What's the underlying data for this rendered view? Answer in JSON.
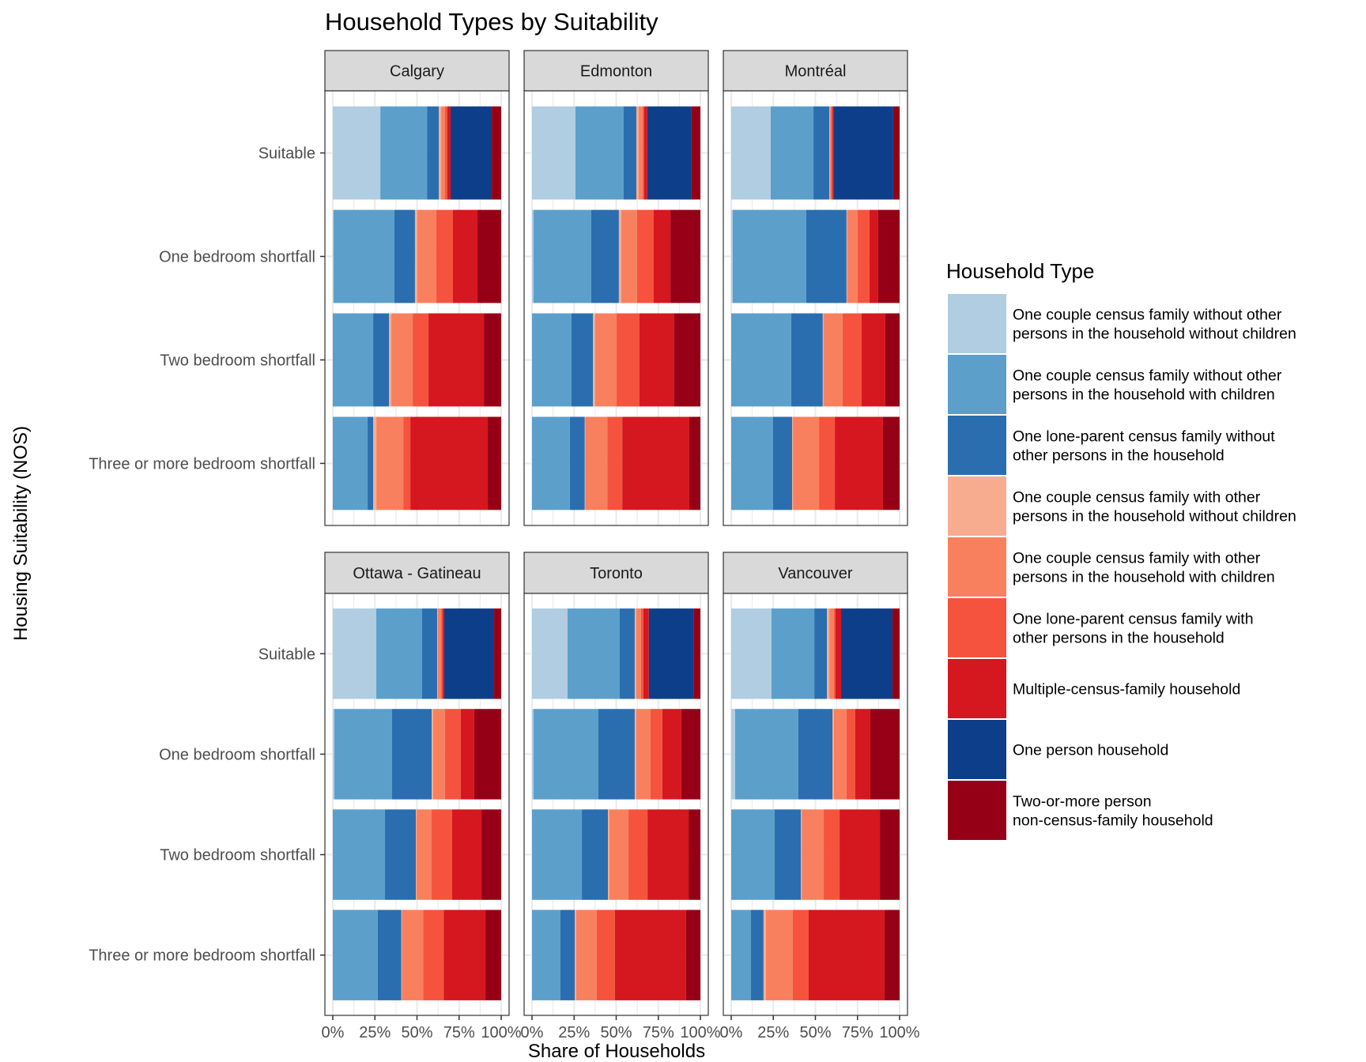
{
  "chart_data": {
    "type": "bar",
    "orientation": "horizontal",
    "stacked": "fill",
    "title": "Household Types by Suitability",
    "xlabel": "Share of Households",
    "ylabel": "Housing Suitability (NOS)",
    "xlim": [
      0,
      1
    ],
    "x_ticks": [
      "0%",
      "25%",
      "50%",
      "75%",
      "100%"
    ],
    "grid": true,
    "legend_title": "Household Type",
    "legend_position": "right",
    "categories": [
      "Suitable",
      "One bedroom shortfall",
      "Two bedroom shortfall",
      "Three or more bedroom shortfall"
    ],
    "household_types": [
      {
        "name": "One couple census family without other persons in the household without children",
        "lines": [
          "One couple census family without other",
          "persons in the household without children"
        ],
        "color": "#b0cde2"
      },
      {
        "name": "One couple census family without other persons in the household with children",
        "lines": [
          "One couple census family without other",
          "persons in the household with children"
        ],
        "color": "#5c9fcb"
      },
      {
        "name": "One lone-parent census family without other persons in the household",
        "lines": [
          "One lone-parent census family without",
          "other persons in the household"
        ],
        "color": "#2a6eb0"
      },
      {
        "name": "One couple census family with other persons in the household without children",
        "lines": [
          "One couple census family with other",
          "persons in the household without children"
        ],
        "color": "#f8ac8f"
      },
      {
        "name": "One couple census family with other persons in the household with children",
        "lines": [
          "One couple census family with other",
          "persons in the household with children"
        ],
        "color": "#f8805f"
      },
      {
        "name": "One lone-parent census family with other persons in the household",
        "lines": [
          "One lone-parent census family with",
          "other persons in the household"
        ],
        "color": "#f5533d"
      },
      {
        "name": "Multiple-census-family household",
        "lines": [
          "Multiple-census-family household"
        ],
        "color": "#d5171f"
      },
      {
        "name": "One person household",
        "lines": [
          "One person household"
        ],
        "color": "#0d3e8a"
      },
      {
        "name": "Two-or-more person non-census-family household",
        "lines": [
          "Two-or-more person",
          "non-census-family household"
        ],
        "color": "#960016"
      }
    ],
    "panels": [
      {
        "city": "Calgary",
        "values": {
          "Suitable": [
            28.2,
            27.7,
            7.0,
            1.4,
            2.3,
            1.4,
            1.9,
            24.4,
            5.6
          ],
          "One bedroom shortfall": [
            0.5,
            36.2,
            12.2,
            1.4,
            11.3,
            9.9,
            14.6,
            0.0,
            14.1
          ],
          "Two bedroom shortfall": [
            0.0,
            24.0,
            9.4,
            1.4,
            12.7,
            9.4,
            32.9,
            0.0,
            10.3
          ],
          "Three or more bedroom shortfall": [
            0.0,
            20.7,
            3.3,
            1.9,
            16.0,
            4.2,
            46.0,
            0.0,
            8.0
          ]
        }
      },
      {
        "city": "Edmonton",
        "values": {
          "Suitable": [
            25.8,
            28.6,
            7.5,
            1.4,
            2.3,
            0.9,
            1.9,
            26.3,
            5.2
          ],
          "One bedroom shortfall": [
            0.9,
            34.3,
            16.4,
            1.4,
            9.4,
            9.9,
            9.9,
            0.0,
            17.8
          ],
          "Two bedroom shortfall": [
            0.0,
            23.5,
            12.7,
            1.4,
            12.7,
            13.6,
            20.7,
            0.0,
            15.5
          ],
          "Three or more bedroom shortfall": [
            0.0,
            22.5,
            8.9,
            0.3,
            13.1,
            8.9,
            39.9,
            0.0,
            6.6
          ]
        }
      },
      {
        "city": "Montréal",
        "values": {
          "Suitable": [
            23.5,
            25.4,
            9.4,
            0.5,
            0.5,
            0.9,
            0.9,
            35.2,
            3.8
          ],
          "One bedroom shortfall": [
            0.9,
            43.7,
            23.9,
            0.5,
            6.1,
            7.0,
            5.2,
            0.0,
            12.7
          ],
          "Two bedroom shortfall": [
            0.0,
            35.7,
            18.8,
            0.5,
            11.3,
            11.3,
            14.1,
            0.0,
            8.5
          ],
          "Three or more bedroom shortfall": [
            0.0,
            24.9,
            11.3,
            0.5,
            15.5,
            9.4,
            28.6,
            0.0,
            9.9
          ]
        }
      },
      {
        "city": "Ottawa - Gatineau",
        "values": {
          "Suitable": [
            25.8,
            27.2,
            8.9,
            0.5,
            1.9,
            0.9,
            0.9,
            29.6,
            4.2
          ],
          "One bedroom shortfall": [
            0.9,
            34.3,
            23.5,
            0.9,
            7.0,
            9.4,
            8.0,
            0.0,
            16.0
          ],
          "Two bedroom shortfall": [
            0.0,
            31.0,
            18.3,
            0.5,
            8.9,
            12.2,
            17.4,
            0.0,
            11.7
          ],
          "Three or more bedroom shortfall": [
            0.0,
            26.8,
            14.1,
            0.3,
            12.7,
            12.2,
            24.9,
            0.0,
            9.4
          ]
        }
      },
      {
        "city": "Toronto",
        "values": {
          "Suitable": [
            21.1,
            31.0,
            8.9,
            0.9,
            2.8,
            1.4,
            3.3,
            26.8,
            3.8
          ],
          "One bedroom shortfall": [
            0.9,
            38.5,
            21.6,
            0.9,
            8.5,
            7.0,
            11.3,
            0.0,
            11.3
          ],
          "Two bedroom shortfall": [
            0.0,
            29.6,
            15.5,
            0.9,
            11.3,
            11.3,
            24.4,
            0.0,
            7.0
          ],
          "Three or more bedroom shortfall": [
            0.0,
            16.9,
            8.5,
            0.9,
            12.2,
            10.8,
            42.3,
            0.0,
            8.5
          ]
        }
      },
      {
        "city": "Vancouver",
        "values": {
          "Suitable": [
            23.9,
            25.4,
            7.5,
            1.4,
            2.8,
            0.9,
            3.3,
            30.5,
            4.2
          ],
          "One bedroom shortfall": [
            2.3,
            37.6,
            20.2,
            0.9,
            7.5,
            5.2,
            8.9,
            0.0,
            17.4
          ],
          "Two bedroom shortfall": [
            0.0,
            25.8,
            15.5,
            0.5,
            13.1,
            9.4,
            23.9,
            0.0,
            11.7
          ],
          "Three or more bedroom shortfall": [
            0.0,
            11.7,
            7.5,
            1.4,
            16.0,
            9.4,
            45.1,
            0.0,
            8.9
          ]
        }
      }
    ]
  }
}
